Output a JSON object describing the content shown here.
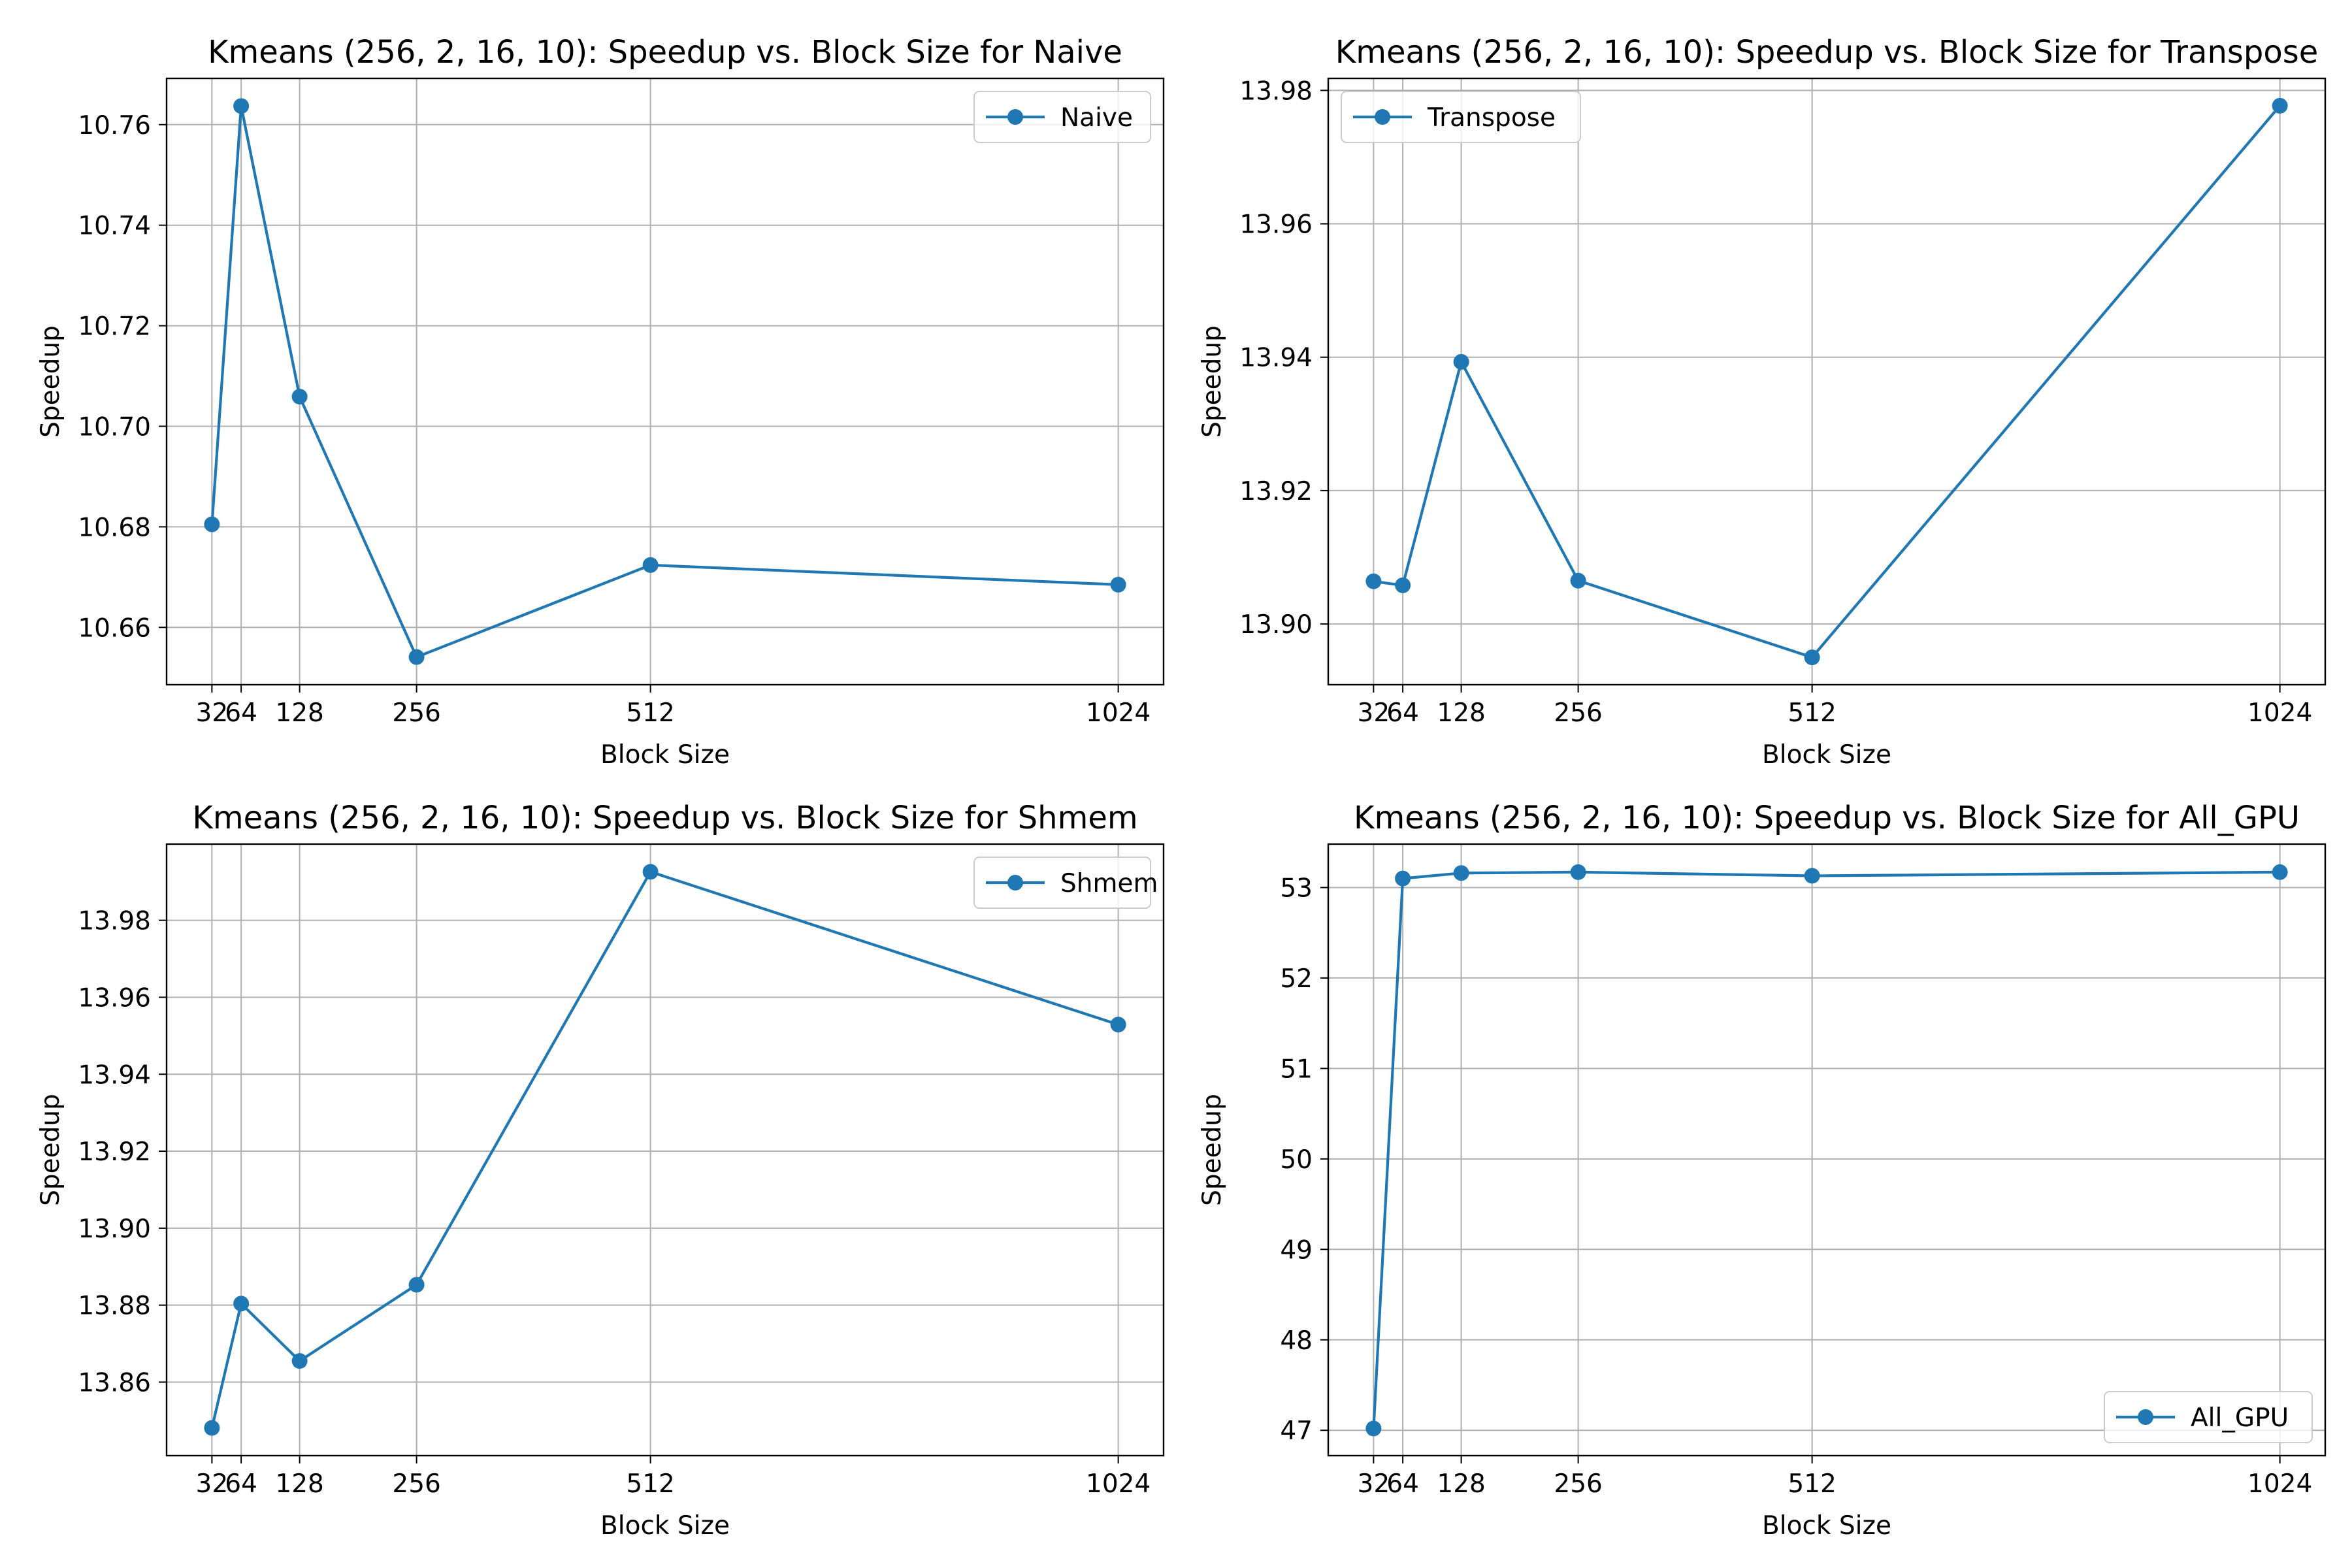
{
  "figure": {
    "series_color": "#1f77b4",
    "grid_color": "#b0b0b0"
  },
  "chart_data": [
    {
      "type": "line",
      "title": "Kmeans (256, 2, 16, 10): Speedup vs. Block Size for Naive",
      "xlabel": "Block Size",
      "ylabel": "Speedup",
      "x": [
        32,
        64,
        128,
        256,
        512,
        1024
      ],
      "x_ticks": [
        32,
        64,
        128,
        256,
        512,
        1024
      ],
      "y_ticks": [
        10.66,
        10.68,
        10.7,
        10.72,
        10.74,
        10.76
      ],
      "y_tick_labels": [
        "10.66",
        "10.68",
        "10.70",
        "10.72",
        "10.74",
        "10.76"
      ],
      "xlim": [
        -17.6,
        1073.6
      ],
      "ylim": [
        10.6486,
        10.7692
      ],
      "grid": true,
      "legend_position": "upper right",
      "series": [
        {
          "name": "Naive",
          "values": [
            10.6805,
            10.7637,
            10.7059,
            10.6541,
            10.6724,
            10.6685
          ]
        }
      ]
    },
    {
      "type": "line",
      "title": "Kmeans (256, 2, 16, 10): Speedup vs. Block Size for Transpose",
      "xlabel": "Block Size",
      "ylabel": "Speedup",
      "x": [
        32,
        64,
        128,
        256,
        512,
        1024
      ],
      "x_ticks": [
        32,
        64,
        128,
        256,
        512,
        1024
      ],
      "y_ticks": [
        13.9,
        13.92,
        13.94,
        13.96,
        13.98
      ],
      "y_tick_labels": [
        "13.90",
        "13.92",
        "13.94",
        "13.96",
        "13.98"
      ],
      "xlim": [
        -17.6,
        1073.6
      ],
      "ylim": [
        13.8909,
        13.9818
      ],
      "grid": true,
      "legend_position": "upper left",
      "series": [
        {
          "name": "Transpose",
          "values": [
            13.9064,
            13.9058,
            13.9393,
            13.9065,
            13.895,
            13.9777
          ]
        }
      ]
    },
    {
      "type": "line",
      "title": "Kmeans (256, 2, 16, 10): Speedup vs. Block Size for Shmem",
      "xlabel": "Block Size",
      "ylabel": "Speedup",
      "x": [
        32,
        64,
        128,
        256,
        512,
        1024
      ],
      "x_ticks": [
        32,
        64,
        128,
        256,
        512,
        1024
      ],
      "y_ticks": [
        13.86,
        13.88,
        13.9,
        13.92,
        13.94,
        13.96,
        13.98
      ],
      "y_tick_labels": [
        "13.86",
        "13.88",
        "13.90",
        "13.92",
        "13.94",
        "13.96",
        "13.98"
      ],
      "xlim": [
        -17.6,
        1073.6
      ],
      "ylim": [
        13.8409,
        13.9998
      ],
      "grid": true,
      "legend_position": "upper right",
      "series": [
        {
          "name": "Shmem",
          "values": [
            13.8481,
            13.8804,
            13.8655,
            13.8853,
            13.9926,
            13.9529
          ]
        }
      ]
    },
    {
      "type": "line",
      "title": "Kmeans (256, 2, 16, 10): Speedup vs. Block Size for All_GPU",
      "xlabel": "Block Size",
      "ylabel": "Speedup",
      "x": [
        32,
        64,
        128,
        256,
        512,
        1024
      ],
      "x_ticks": [
        32,
        64,
        128,
        256,
        512,
        1024
      ],
      "y_ticks": [
        47,
        48,
        49,
        50,
        51,
        52,
        53
      ],
      "y_tick_labels": [
        "47",
        "48",
        "49",
        "50",
        "51",
        "52",
        "53"
      ],
      "xlim": [
        -17.6,
        1073.6
      ],
      "ylim": [
        46.72,
        53.48
      ],
      "grid": true,
      "legend_position": "lower right",
      "series": [
        {
          "name": "All_GPU",
          "values": [
            47.02,
            53.1,
            53.16,
            53.17,
            53.13,
            53.17
          ]
        }
      ]
    }
  ]
}
